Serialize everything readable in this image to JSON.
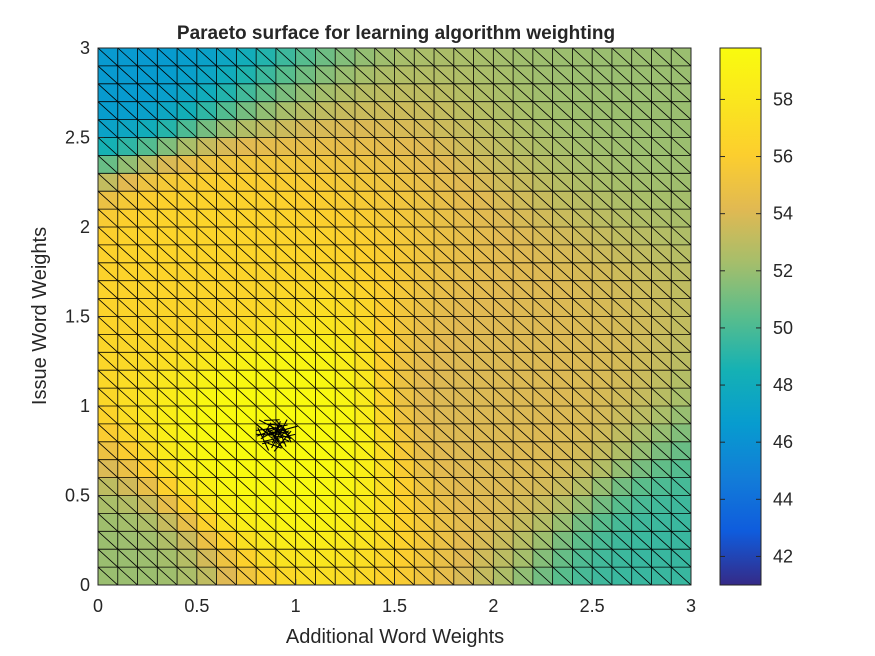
{
  "chart_data": {
    "type": "heatmap",
    "title": "Paraeto surface for learning algorithm weighting",
    "xlabel": "Additional Word Weights",
    "ylabel": "Issue Word Weights",
    "xlim": [
      0,
      3
    ],
    "ylim": [
      0,
      3
    ],
    "x_ticks": [
      "0",
      "0.5",
      "1",
      "1.5",
      "2",
      "2.5",
      "3"
    ],
    "y_ticks": [
      "0",
      "0.5",
      "1",
      "1.5",
      "2",
      "2.5",
      "3"
    ],
    "colorbar": {
      "range": [
        41,
        59.8
      ],
      "ticks": [
        "42",
        "44",
        "46",
        "48",
        "50",
        "52",
        "54",
        "56",
        "58"
      ],
      "colormap": "parula"
    },
    "grid_step": 0.1,
    "surface_peak": {
      "x": 0.9,
      "y": 0.85,
      "value": 59.8
    },
    "sample_values": [
      {
        "x": 0,
        "y": 3,
        "value": 46.5
      },
      {
        "x": 0,
        "y": 0,
        "value": 52
      },
      {
        "x": 3,
        "y": 0,
        "value": 49.5
      },
      {
        "x": 3,
        "y": 3,
        "value": 52
      },
      {
        "x": 0.9,
        "y": 0.85,
        "value": 59.8
      },
      {
        "x": 0.5,
        "y": 1.8,
        "value": 56.5
      },
      {
        "x": 2,
        "y": 1,
        "value": 54
      }
    ]
  }
}
